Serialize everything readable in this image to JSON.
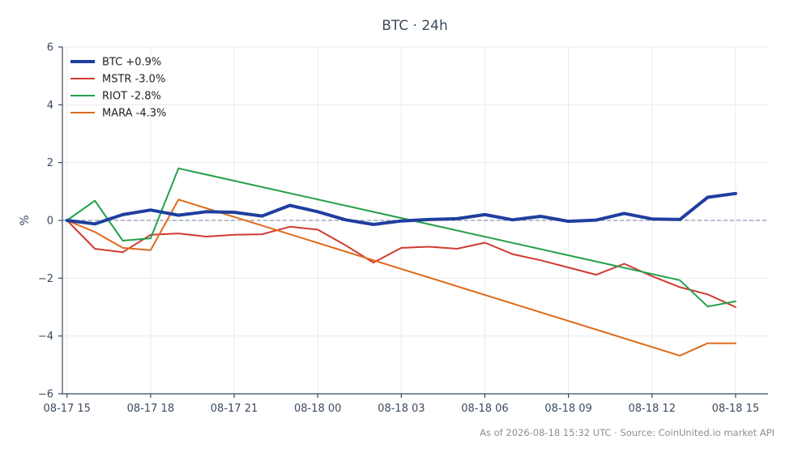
{
  "chart_data": {
    "type": "line",
    "title": "BTC · 24h",
    "ylabel": "%",
    "xlabel": "",
    "ylim": [
      -6,
      6
    ],
    "yticks": [
      -6,
      -4,
      -2,
      0,
      2,
      4,
      6
    ],
    "ytick_labels": [
      "−6",
      "−4",
      "−2",
      "0",
      "2",
      "4",
      "6"
    ],
    "xlim": [
      "08-17 14:50",
      "08-18 16:10"
    ],
    "xticks": [
      "08-17 15",
      "08-17 18",
      "08-17 21",
      "08-18 00",
      "08-18 03",
      "08-18 06",
      "08-18 09",
      "08-18 12",
      "08-18 15"
    ],
    "grid": true,
    "zero_line": true,
    "legend_position": "top-left",
    "series": [
      {
        "name": "BTC +0.9%",
        "color": "#1f3f9e",
        "width": 4,
        "x": [
          "08-17 15:00",
          "08-17 16:00",
          "08-17 17:00",
          "08-17 18:00",
          "08-17 19:00",
          "08-17 20:00",
          "08-17 21:00",
          "08-17 22:00",
          "08-17 23:00",
          "08-18 00:00",
          "08-18 01:00",
          "08-18 02:00",
          "08-18 03:00",
          "08-18 04:00",
          "08-18 05:00",
          "08-18 06:00",
          "08-18 07:00",
          "08-18 08:00",
          "08-18 09:00",
          "08-18 10:00",
          "08-18 11:00",
          "08-18 12:00",
          "08-18 13:00",
          "08-18 14:00",
          "08-18 15:00"
        ],
        "y": [
          0.0,
          -0.12,
          0.2,
          0.36,
          0.18,
          0.3,
          0.28,
          0.15,
          0.52,
          0.3,
          0.02,
          -0.14,
          -0.02,
          0.03,
          0.06,
          0.2,
          0.02,
          0.14,
          -0.03,
          0.01,
          0.24,
          0.05,
          0.03,
          0.8,
          0.93
        ]
      },
      {
        "name": "MSTR -3.0%",
        "color": "#d03a32",
        "width": 2,
        "x": [
          "08-17 15:00",
          "08-17 16:00",
          "08-17 17:00",
          "08-17 18:00",
          "08-17 19:00",
          "08-17 20:00",
          "08-17 21:00",
          "08-17 22:00",
          "08-17 23:00",
          "08-18 00:00",
          "08-18 01:00",
          "08-18 02:00",
          "08-18 03:00",
          "08-18 04:00",
          "08-18 05:00",
          "08-18 06:00",
          "08-18 07:00",
          "08-18 08:00",
          "08-18 09:00",
          "08-18 10:00",
          "08-18 11:00",
          "08-18 12:00",
          "08-18 13:00",
          "08-18 14:00",
          "08-18 15:00"
        ],
        "y": [
          0.0,
          -0.98,
          -1.1,
          -0.5,
          -0.45,
          -0.56,
          -0.5,
          -0.48,
          -0.22,
          -0.32,
          -0.86,
          -1.46,
          -0.95,
          -0.91,
          -0.98,
          -0.77,
          -1.17,
          -1.38,
          -1.63,
          -1.88,
          -1.5,
          -1.93,
          -2.31,
          -2.56,
          -3.0
        ]
      },
      {
        "name": "RIOT -2.8%",
        "color": "#22a04a",
        "width": 2,
        "x": [
          "08-17 15:00",
          "08-17 16:00",
          "08-17 17:00",
          "08-17 18:00",
          "08-17 19:00",
          "08-18 13:00",
          "08-18 14:00",
          "08-18 15:00"
        ],
        "y": [
          0.0,
          0.68,
          -0.7,
          -0.62,
          1.8,
          -2.07,
          -2.98,
          -2.8
        ]
      },
      {
        "name": "MARA -4.3%",
        "color": "#de6a1c",
        "width": 2,
        "x": [
          "08-17 15:00",
          "08-17 16:00",
          "08-17 17:00",
          "08-17 18:00",
          "08-17 19:00",
          "08-18 13:00",
          "08-18 14:00",
          "08-18 15:00"
        ],
        "y": [
          0.0,
          -0.4,
          -0.95,
          -1.03,
          0.72,
          -4.68,
          -4.25,
          -4.25
        ]
      }
    ]
  },
  "footer": {
    "text": "As of 2026-08-18 15:32 UTC · Source: CoinUnited.io market API"
  }
}
